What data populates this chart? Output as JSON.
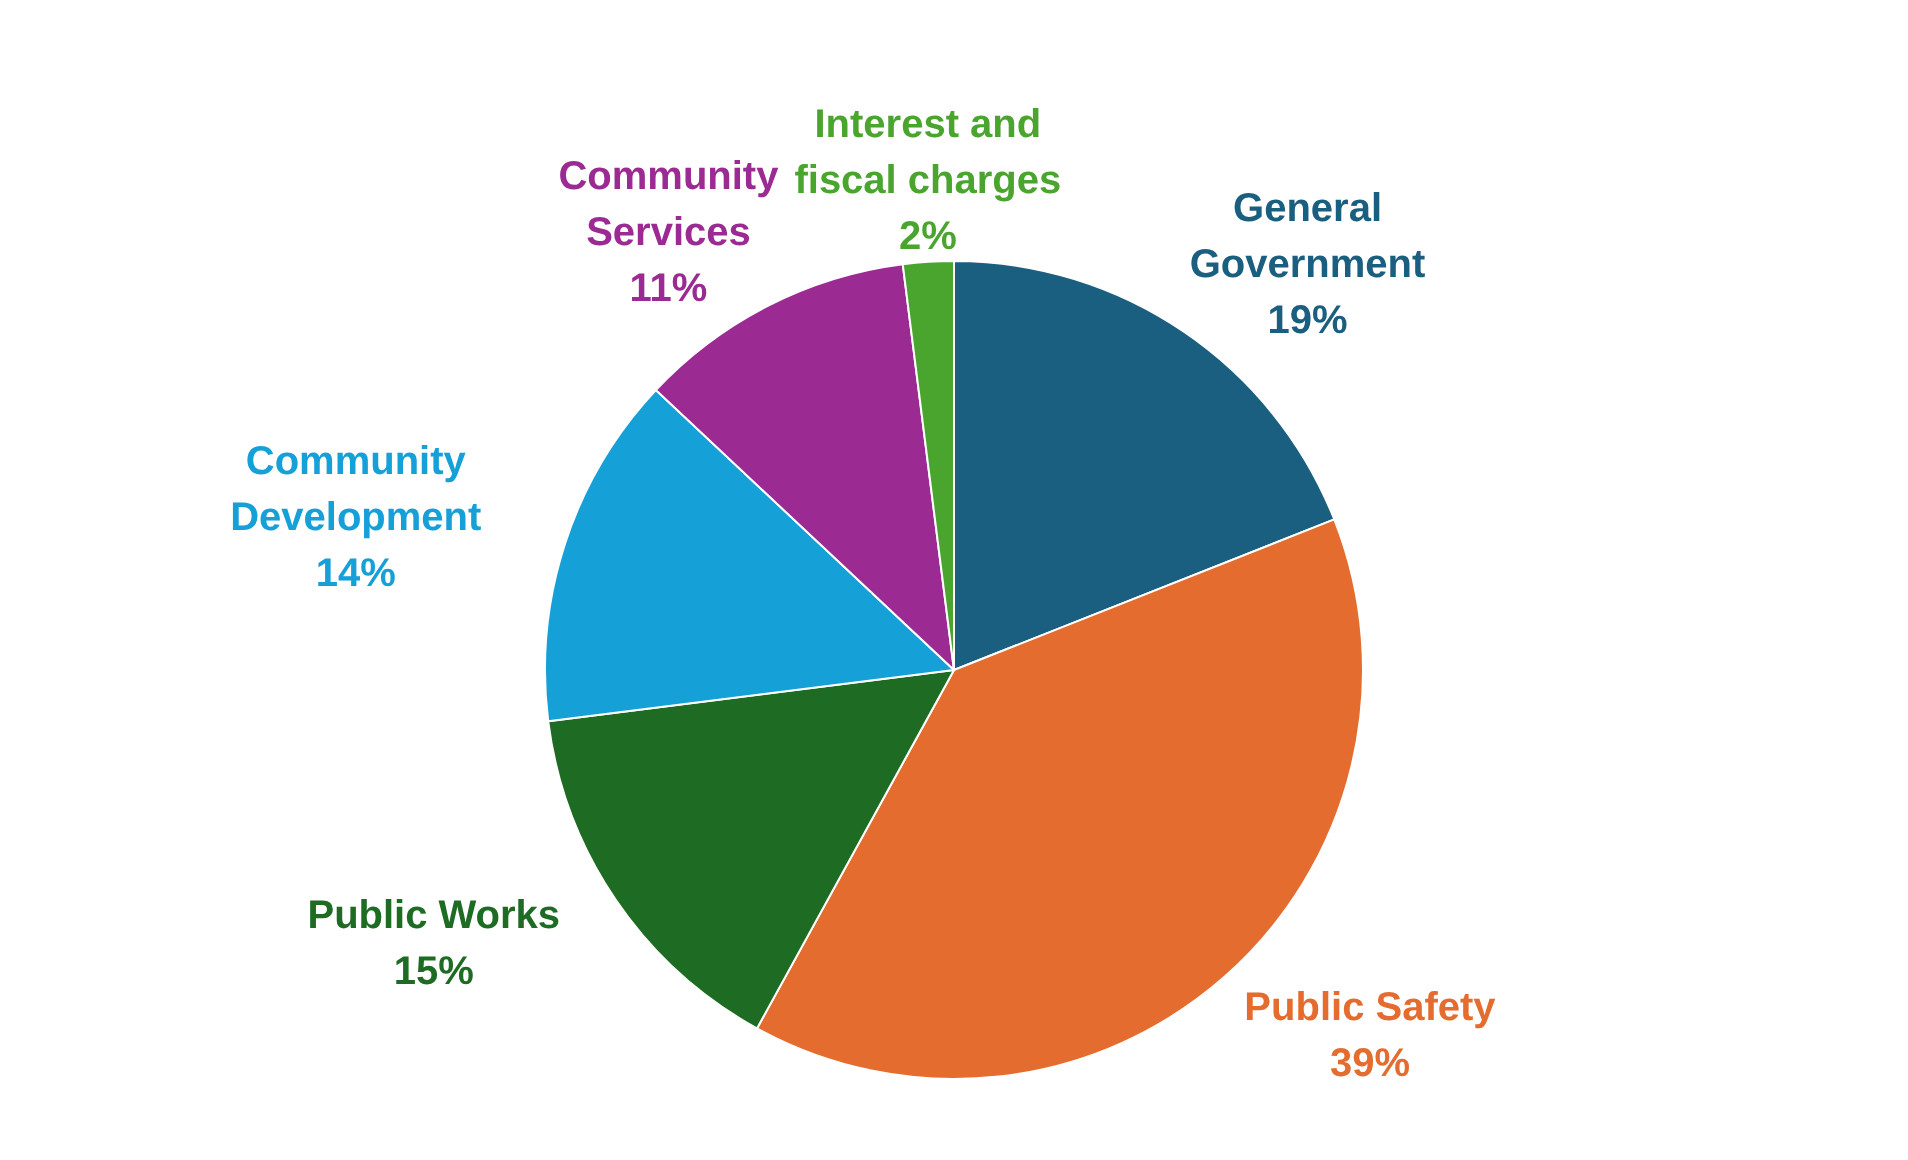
{
  "chart_data": {
    "type": "pie",
    "categories": [
      "General Government",
      "Public Safety",
      "Public Works",
      "Community Development",
      "Community Services",
      "Interest and fiscal charges"
    ],
    "values": [
      19,
      39,
      15,
      14,
      11,
      2
    ],
    "colors": [
      "#1a5e80",
      "#e46c2e",
      "#1e6b23",
      "#16a0d8",
      "#9c2a93",
      "#4aa52e"
    ],
    "value_labels": [
      "19%",
      "39%",
      "15%",
      "14%",
      "11%",
      "2%"
    ],
    "legend": false
  }
}
